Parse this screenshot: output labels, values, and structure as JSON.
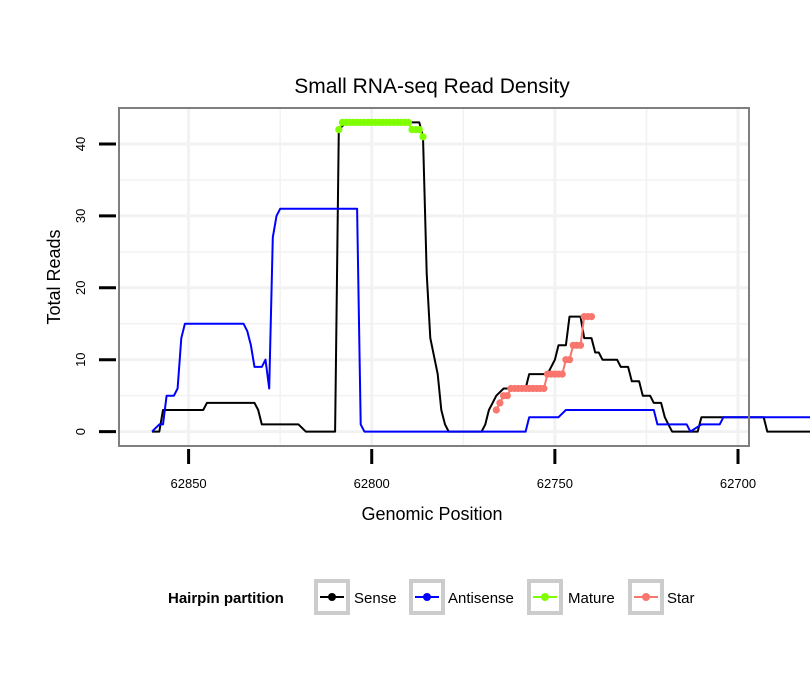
{
  "chart_data": {
    "type": "line",
    "title": "Small RNA-seq Read Density",
    "xlabel": "Genomic Position",
    "ylabel": "Total Reads",
    "x_reversed": true,
    "xlim": [
      62869,
      62697
    ],
    "ylim": [
      -2,
      45
    ],
    "x_ticks": [
      62850,
      62800,
      62750,
      62700
    ],
    "y_ticks": [
      0,
      10,
      20,
      30,
      40
    ],
    "x_tick_labels": [
      "62850",
      "62800",
      "62750",
      "62700"
    ],
    "y_tick_labels": [
      "0",
      "10",
      "20",
      "30",
      "40"
    ],
    "grid": true,
    "legend": {
      "title": "Hairpin partition",
      "position": "bottom",
      "entries": [
        "Sense",
        "Antisense",
        "Mature",
        "Star"
      ]
    },
    "series": [
      {
        "name": "Sense",
        "color": "#000000",
        "points": [
          [
            62860,
            0
          ],
          [
            62858,
            0
          ],
          [
            62857,
            3
          ],
          [
            62855,
            3
          ],
          [
            62847,
            3
          ],
          [
            62846,
            3
          ],
          [
            62845,
            4
          ],
          [
            62832,
            4
          ],
          [
            62831,
            3
          ],
          [
            62830,
            1
          ],
          [
            62820,
            1
          ],
          [
            62818,
            0
          ],
          [
            62810,
            0
          ],
          [
            62809,
            42
          ],
          [
            62807,
            43
          ],
          [
            62792,
            43
          ],
          [
            62787,
            43
          ],
          [
            62786,
            41
          ],
          [
            62785,
            22
          ],
          [
            62784,
            13
          ],
          [
            62782,
            8
          ],
          [
            62781,
            3
          ],
          [
            62780,
            1
          ],
          [
            62779,
            0
          ],
          [
            62770,
            0
          ],
          [
            62769,
            1
          ],
          [
            62768,
            3
          ],
          [
            62767,
            4
          ],
          [
            62766,
            5
          ],
          [
            62764,
            6
          ],
          [
            62758,
            6
          ],
          [
            62757,
            8
          ],
          [
            62752,
            8
          ],
          [
            62750,
            10
          ],
          [
            62749,
            12
          ],
          [
            62747,
            12
          ],
          [
            62746,
            16
          ],
          [
            62743,
            16
          ],
          [
            62742,
            13
          ],
          [
            62740,
            13
          ],
          [
            62739,
            11
          ],
          [
            62738,
            11
          ],
          [
            62737,
            10
          ],
          [
            62733,
            10
          ],
          [
            62732,
            9
          ],
          [
            62730,
            9
          ],
          [
            62729,
            7
          ],
          [
            62727,
            7
          ],
          [
            62726,
            5
          ],
          [
            62724,
            5
          ],
          [
            62723,
            4
          ],
          [
            62721,
            4
          ],
          [
            62720,
            2
          ],
          [
            62719,
            1
          ],
          [
            62718,
            0
          ],
          [
            62711,
            0
          ],
          [
            62710,
            2
          ],
          [
            62693,
            2
          ],
          [
            62692,
            0
          ],
          [
            62678,
            0
          ]
        ]
      },
      {
        "name": "Antisense",
        "color": "#0000ff",
        "points": [
          [
            62860,
            0
          ],
          [
            62858,
            1
          ],
          [
            62857,
            1
          ],
          [
            62856,
            5
          ],
          [
            62854,
            5
          ],
          [
            62853,
            6
          ],
          [
            62852,
            13
          ],
          [
            62851,
            15
          ],
          [
            62835,
            15
          ],
          [
            62834,
            14
          ],
          [
            62833,
            12
          ],
          [
            62832,
            9
          ],
          [
            62830,
            9
          ],
          [
            62829,
            10
          ],
          [
            62828,
            6
          ],
          [
            62827,
            27
          ],
          [
            62826,
            30
          ],
          [
            62825,
            31
          ],
          [
            62804,
            31
          ],
          [
            62803,
            1
          ],
          [
            62802,
            0
          ],
          [
            62760,
            0
          ],
          [
            62758,
            0
          ],
          [
            62757,
            2
          ],
          [
            62749,
            2
          ],
          [
            62747,
            3
          ],
          [
            62723,
            3
          ],
          [
            62722,
            1
          ],
          [
            62714,
            1
          ],
          [
            62713,
            0
          ],
          [
            62710,
            1
          ],
          [
            62705,
            1
          ],
          [
            62704,
            2
          ],
          [
            62680,
            2
          ],
          [
            62679,
            1
          ],
          [
            62676,
            1
          ],
          [
            62675,
            0
          ],
          [
            62669,
            0
          ]
        ]
      },
      {
        "name": "Mature",
        "color": "#7fff00",
        "points": [
          [
            62809,
            42
          ],
          [
            62808,
            43
          ],
          [
            62807,
            43
          ],
          [
            62806,
            43
          ],
          [
            62805,
            43
          ],
          [
            62804,
            43
          ],
          [
            62803,
            43
          ],
          [
            62802,
            43
          ],
          [
            62801,
            43
          ],
          [
            62800,
            43
          ],
          [
            62799,
            43
          ],
          [
            62798,
            43
          ],
          [
            62797,
            43
          ],
          [
            62796,
            43
          ],
          [
            62795,
            43
          ],
          [
            62794,
            43
          ],
          [
            62793,
            43
          ],
          [
            62792,
            43
          ],
          [
            62791,
            43
          ],
          [
            62790,
            43
          ],
          [
            62789,
            42
          ],
          [
            62788,
            42
          ],
          [
            62787,
            42
          ],
          [
            62786,
            41
          ]
        ]
      },
      {
        "name": "Star",
        "color": "#f8766d",
        "points": [
          [
            62766,
            3
          ],
          [
            62765,
            4
          ],
          [
            62764,
            5
          ],
          [
            62763,
            5
          ],
          [
            62762,
            6
          ],
          [
            62761,
            6
          ],
          [
            62760,
            6
          ],
          [
            62759,
            6
          ],
          [
            62758,
            6
          ],
          [
            62757,
            6
          ],
          [
            62756,
            6
          ],
          [
            62755,
            6
          ],
          [
            62754,
            6
          ],
          [
            62753,
            6
          ],
          [
            62752,
            8
          ],
          [
            62751,
            8
          ],
          [
            62750,
            8
          ],
          [
            62749,
            8
          ],
          [
            62748,
            8
          ],
          [
            62747,
            10
          ],
          [
            62746,
            10
          ],
          [
            62745,
            12
          ],
          [
            62744,
            12
          ],
          [
            62743,
            12
          ],
          [
            62742,
            16
          ],
          [
            62741,
            16
          ],
          [
            62740,
            16
          ]
        ]
      }
    ]
  }
}
